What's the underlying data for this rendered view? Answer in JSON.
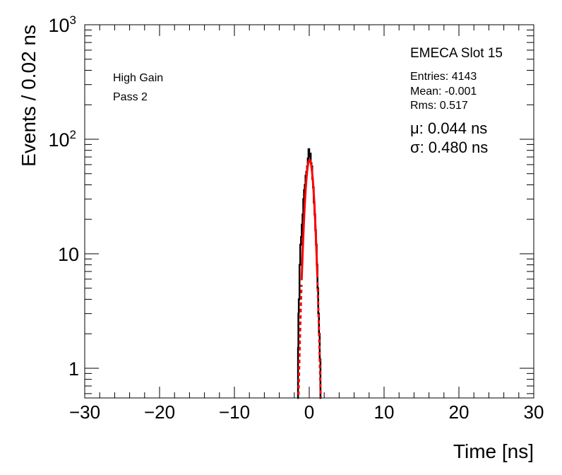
{
  "chart_data": {
    "type": "histogram",
    "xlabel": "Time [ns]",
    "ylabel": "Events / 0.02 ns",
    "xlim": [
      -30,
      30
    ],
    "ylim": [
      0.55,
      1000
    ],
    "yscale": "log",
    "x_ticks": [
      "−30",
      "−20",
      "−10",
      "0",
      "10",
      "20",
      "30"
    ],
    "x_tick_values": [
      -30,
      -20,
      -10,
      0,
      10,
      20,
      30
    ],
    "y_ticks": [
      {
        "value": 1,
        "label": "1",
        "sup": ""
      },
      {
        "value": 10,
        "label": "10",
        "sup": ""
      },
      {
        "value": 100,
        "label": "10",
        "sup": "2"
      },
      {
        "value": 1000,
        "label": "10",
        "sup": "3"
      }
    ],
    "labels": {
      "gain": "High Gain",
      "pass": "Pass 2",
      "title": "EMECA Slot 15"
    },
    "stats": {
      "entries": "Entries: 4143",
      "mean": "Mean: -0.001",
      "rms": "Rms: 0.517"
    },
    "fit": {
      "mu_text": "μ: 0.044 ns",
      "sigma_text": "σ: 0.480 ns",
      "mu": 0.044,
      "sigma": 0.48,
      "amplitude": 66,
      "color": "#ff0000"
    },
    "histogram": {
      "color": "#000000",
      "points": [
        [
          -1.6,
          0.5
        ],
        [
          -1.5,
          1.5
        ],
        [
          -1.45,
          3
        ],
        [
          -1.4,
          4
        ],
        [
          -1.3,
          8
        ],
        [
          -1.2,
          12
        ],
        [
          -1.1,
          14
        ],
        [
          -1.0,
          18
        ],
        [
          -0.9,
          22
        ],
        [
          -0.8,
          30
        ],
        [
          -0.7,
          36
        ],
        [
          -0.6,
          40
        ],
        [
          -0.5,
          48
        ],
        [
          -0.4,
          52
        ],
        [
          -0.3,
          58
        ],
        [
          -0.2,
          68
        ],
        [
          -0.1,
          82
        ],
        [
          0.0,
          70
        ],
        [
          0.1,
          75
        ],
        [
          0.2,
          62
        ],
        [
          0.3,
          58
        ],
        [
          0.4,
          45
        ],
        [
          0.5,
          38
        ],
        [
          0.6,
          28
        ],
        [
          0.7,
          22
        ],
        [
          0.8,
          16
        ],
        [
          0.9,
          12
        ],
        [
          1.0,
          8
        ],
        [
          1.1,
          5
        ],
        [
          1.2,
          3
        ],
        [
          1.3,
          2
        ],
        [
          1.4,
          1.2
        ],
        [
          1.5,
          0.5
        ]
      ]
    }
  }
}
